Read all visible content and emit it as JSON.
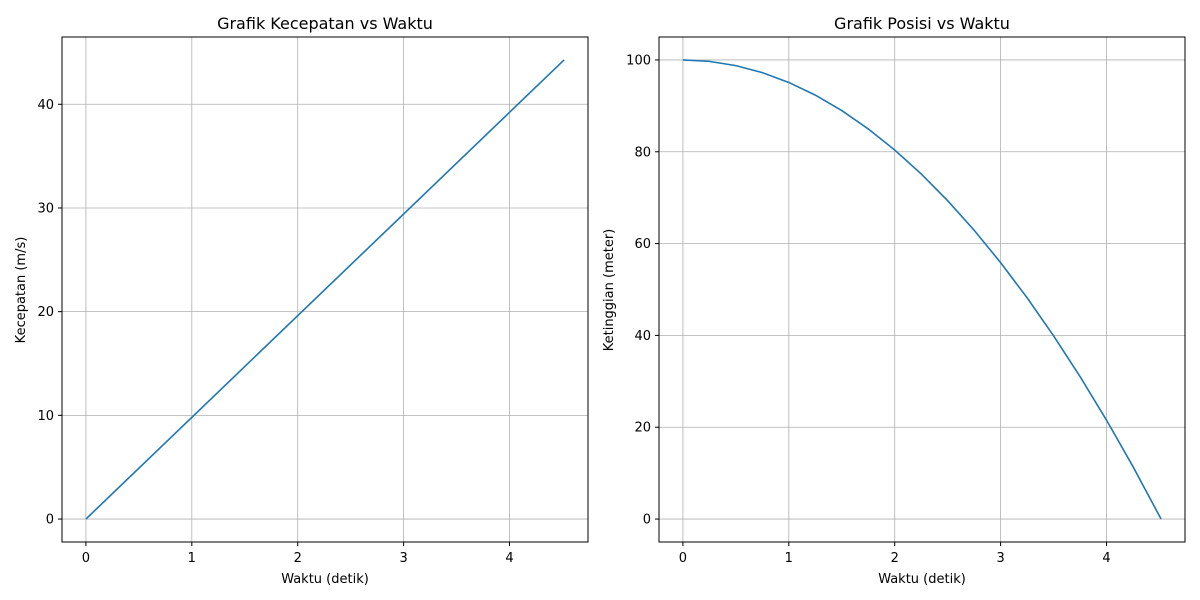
{
  "chart_data": [
    {
      "type": "line",
      "title": "Grafik Kecepatan vs Waktu",
      "xlabel": "Waktu (detik)",
      "ylabel": "Kecepatan (m/s)",
      "xlim": [
        -0.2258,
        4.7411
      ],
      "ylim": [
        -2.214,
        46.488
      ],
      "xticks": [
        0,
        1,
        2,
        3,
        4
      ],
      "yticks": [
        0,
        10,
        20,
        30,
        40
      ],
      "grid": true,
      "series": [
        {
          "color": "#1f77b4",
          "x": [
            0,
            4.5152
          ],
          "y": [
            0,
            44.2745
          ]
        }
      ]
    },
    {
      "type": "line",
      "title": "Grafik Posisi vs Waktu",
      "xlabel": "Waktu (detik)",
      "ylabel": "Ketinggian (meter)",
      "xlim": [
        -0.2258,
        4.7411
      ],
      "ylim": [
        -5.0,
        105.0
      ],
      "xticks": [
        0,
        1,
        2,
        3,
        4
      ],
      "yticks": [
        0,
        20,
        40,
        60,
        80,
        100
      ],
      "grid": true,
      "series": [
        {
          "color": "#1f77b4",
          "x": [
            0,
            0.25,
            0.5,
            0.75,
            1.0,
            1.25,
            1.5,
            1.75,
            2.0,
            2.25,
            2.5,
            2.75,
            3.0,
            3.25,
            3.5,
            3.75,
            4.0,
            4.25,
            4.5152
          ],
          "y": [
            100,
            99.69,
            98.77,
            97.24,
            95.1,
            92.34,
            88.97,
            84.98,
            80.38,
            75.17,
            69.35,
            62.91,
            55.86,
            48.2,
            39.92,
            31.04,
            21.54,
            11.43,
            0
          ]
        }
      ]
    }
  ]
}
